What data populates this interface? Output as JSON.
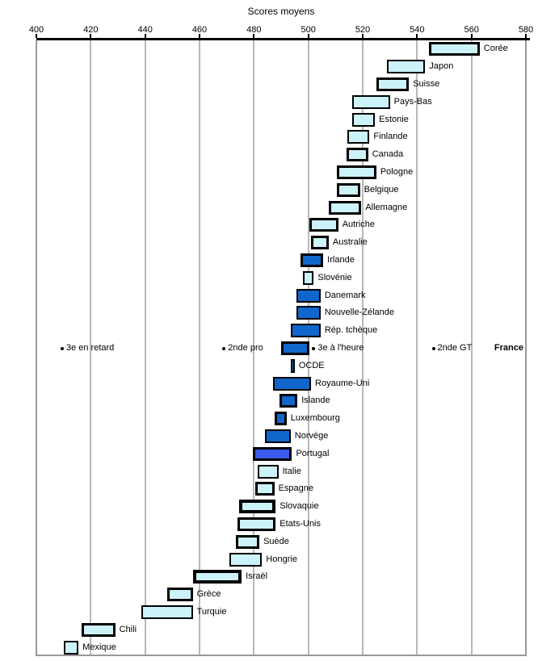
{
  "title": "Scores moyens",
  "colors": {
    "cyan": "#ccf2fa",
    "blue": "#1166cb",
    "royal": "#3c5bee",
    "bar_border": "#000000",
    "gridline": "#b8b8b8",
    "frame": "#999999",
    "axis_line": "#000000",
    "text": "#000000",
    "background": "#ffffff"
  },
  "chart_data": {
    "type": "bar",
    "subtype": "horizontal-range-bars",
    "title": "Scores moyens",
    "axis_position": "top",
    "xlim": [
      400,
      580
    ],
    "x_ticks": [
      400,
      420,
      440,
      460,
      480,
      500,
      520,
      540,
      560,
      580
    ],
    "grid": "vertical",
    "bars": [
      {
        "label": "Corée",
        "low": 544.5,
        "high": 563,
        "color": "cyan",
        "border_px": 3
      },
      {
        "label": "Japon",
        "low": 529,
        "high": 543,
        "color": "cyan",
        "border_px": 2
      },
      {
        "label": "Suisse",
        "low": 525,
        "high": 537,
        "color": "cyan",
        "border_px": 3
      },
      {
        "label": "Pays-Bas",
        "low": 516,
        "high": 530,
        "color": "cyan",
        "border_px": 2
      },
      {
        "label": "Estonie",
        "low": 516,
        "high": 524.5,
        "color": "cyan",
        "border_px": 2
      },
      {
        "label": "Finlande",
        "low": 514.5,
        "high": 522.5,
        "color": "cyan",
        "border_px": 2
      },
      {
        "label": "Canada",
        "low": 514,
        "high": 522,
        "color": "cyan",
        "border_px": 3
      },
      {
        "label": "Pologne",
        "low": 510.5,
        "high": 525,
        "color": "cyan",
        "border_px": 3
      },
      {
        "label": "Belgique",
        "low": 510.5,
        "high": 519,
        "color": "cyan",
        "border_px": 3
      },
      {
        "label": "Allemagne",
        "low": 507.5,
        "high": 519.5,
        "color": "cyan",
        "border_px": 3
      },
      {
        "label": "Autriche",
        "low": 500.5,
        "high": 511,
        "color": "cyan",
        "border_px": 3
      },
      {
        "label": "Australie",
        "low": 501,
        "high": 507.5,
        "color": "cyan",
        "border_px": 3
      },
      {
        "label": "Irlande",
        "low": 497,
        "high": 505.5,
        "color": "blue",
        "border_px": 3
      },
      {
        "label": "Slovénie",
        "low": 498,
        "high": 502,
        "color": "cyan",
        "border_px": 2
      },
      {
        "label": "Danemark",
        "low": 495.5,
        "high": 504.5,
        "color": "blue",
        "border_px": 2
      },
      {
        "label": "Nouvelle-Zélande",
        "low": 495.5,
        "high": 504.5,
        "color": "blue",
        "border_px": 2
      },
      {
        "label": "Rép. tchèque",
        "low": 493.5,
        "high": 504.5,
        "color": "blue",
        "border_px": 2
      },
      {
        "label": "France",
        "low": 490,
        "high": 500.5,
        "color": "blue",
        "border_px": 3,
        "label_far_right": true,
        "bold_label": true
      },
      {
        "label": "OCDE",
        "low": 493.5,
        "high": 495,
        "color": "blue",
        "border_px": 2
      },
      {
        "label": "Royaume-Uni",
        "low": 487,
        "high": 501,
        "color": "blue",
        "border_px": 2
      },
      {
        "label": "Islande",
        "low": 489.5,
        "high": 496,
        "color": "blue",
        "border_px": 3
      },
      {
        "label": "Luxembourg",
        "low": 487.5,
        "high": 492,
        "color": "blue",
        "border_px": 3
      },
      {
        "label": "Norvège",
        "low": 484,
        "high": 493.5,
        "color": "blue",
        "border_px": 2
      },
      {
        "label": "Portugal",
        "low": 479.5,
        "high": 494,
        "color": "royal",
        "border_px": 3
      },
      {
        "label": "Italie",
        "low": 481.5,
        "high": 489,
        "color": "cyan",
        "border_px": 2
      },
      {
        "label": "Espagne",
        "low": 480.5,
        "high": 487.5,
        "color": "cyan",
        "border_px": 3
      },
      {
        "label": "Slovaquie",
        "low": 474.5,
        "high": 488,
        "color": "cyan",
        "border_px": 4
      },
      {
        "label": "Etats-Unis",
        "low": 474,
        "high": 488,
        "color": "cyan",
        "border_px": 3
      },
      {
        "label": "Suède",
        "low": 473.5,
        "high": 482,
        "color": "cyan",
        "border_px": 3
      },
      {
        "label": "Hongrie",
        "low": 471,
        "high": 483,
        "color": "cyan",
        "border_px": 2
      },
      {
        "label": "Israël",
        "low": 457.5,
        "high": 475.5,
        "color": "cyan",
        "border_px": 4
      },
      {
        "label": "Grèce",
        "low": 448,
        "high": 457.5,
        "color": "cyan",
        "border_px": 3
      },
      {
        "label": "Turquie",
        "low": 438.5,
        "high": 457.5,
        "color": "cyan",
        "border_px": 2
      },
      {
        "label": "Chili",
        "low": 416.5,
        "high": 429,
        "color": "cyan",
        "border_px": 3
      },
      {
        "label": "Mexique",
        "low": 410,
        "high": 415.5,
        "color": "cyan",
        "border_px": 2
      }
    ],
    "annotations": [
      {
        "label": "3e en retard",
        "value": 409.5,
        "marker": "dot",
        "row": "France"
      },
      {
        "label": "2nde pro",
        "value": 469,
        "marker": "dot",
        "row": "France"
      },
      {
        "label": "3e à l'heure",
        "value": 502,
        "marker": "dot",
        "row": "France"
      },
      {
        "label": "2nde GT",
        "value": 546,
        "marker": "dot",
        "row": "France"
      },
      {
        "label": "France",
        "value": 568,
        "marker": "none",
        "row": "France",
        "bold": true,
        "align": "right"
      }
    ]
  }
}
